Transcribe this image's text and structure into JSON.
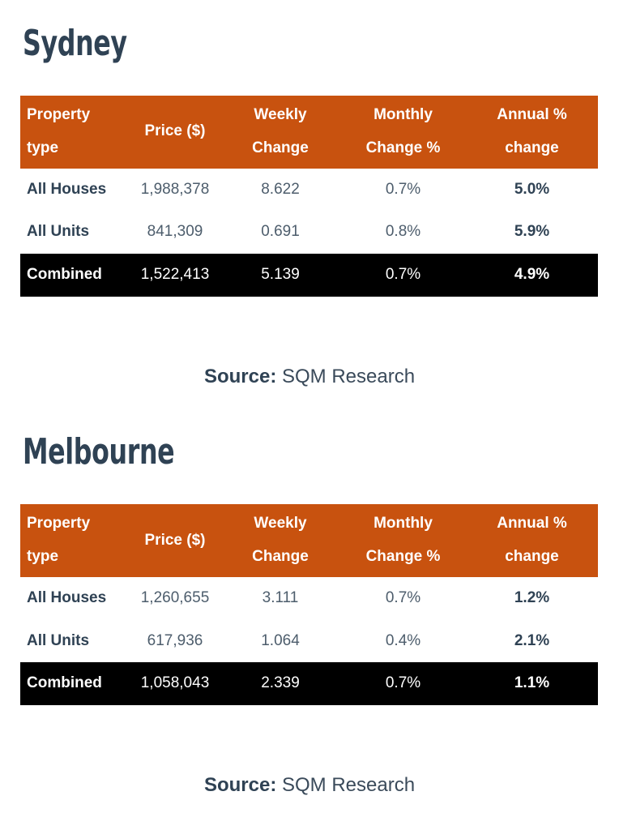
{
  "colors": {
    "table_header_bg": "#C8520F",
    "heading_text": "#2F4254",
    "body_text": "#4D5D6C",
    "highlight_row_bg": "#000000",
    "highlight_row_text": "#FFFFFF"
  },
  "sections": [
    {
      "heading": "Sydney",
      "table": {
        "columns": [
          "Property type",
          "Price ($)",
          "Weekly Change",
          "Monthly Change %",
          "Annual % change"
        ],
        "rows": [
          {
            "property_type": "All Houses",
            "price": "1,988,378",
            "weekly_change": "8.622",
            "monthly_change": "0.7%",
            "annual_change": "5.0%"
          },
          {
            "property_type": "All Units",
            "price": "841,309",
            "weekly_change": "0.691",
            "monthly_change": "0.8%",
            "annual_change": "5.9%"
          },
          {
            "property_type": "Combined",
            "price": "1,522,413",
            "weekly_change": "5.139",
            "monthly_change": "0.7%",
            "annual_change": "4.9%"
          }
        ]
      },
      "source": {
        "label": "Source:",
        "value": "SQM Research"
      }
    },
    {
      "heading": "Melbourne",
      "table": {
        "columns": [
          "Property type",
          "Price ($)",
          "Weekly Change",
          "Monthly Change %",
          "Annual % change"
        ],
        "rows": [
          {
            "property_type": "All Houses",
            "price": "1,260,655",
            "weekly_change": "3.111",
            "monthly_change": "0.7%",
            "annual_change": "1.2%"
          },
          {
            "property_type": "All Units",
            "price": "617,936",
            "weekly_change": "1.064",
            "monthly_change": "0.4%",
            "annual_change": "2.1%"
          },
          {
            "property_type": "Combined",
            "price": "1,058,043",
            "weekly_change": "2.339",
            "monthly_change": "0.7%",
            "annual_change": "1.1%"
          }
        ]
      },
      "source": {
        "label": "Source:",
        "value": "SQM Research"
      }
    }
  ]
}
